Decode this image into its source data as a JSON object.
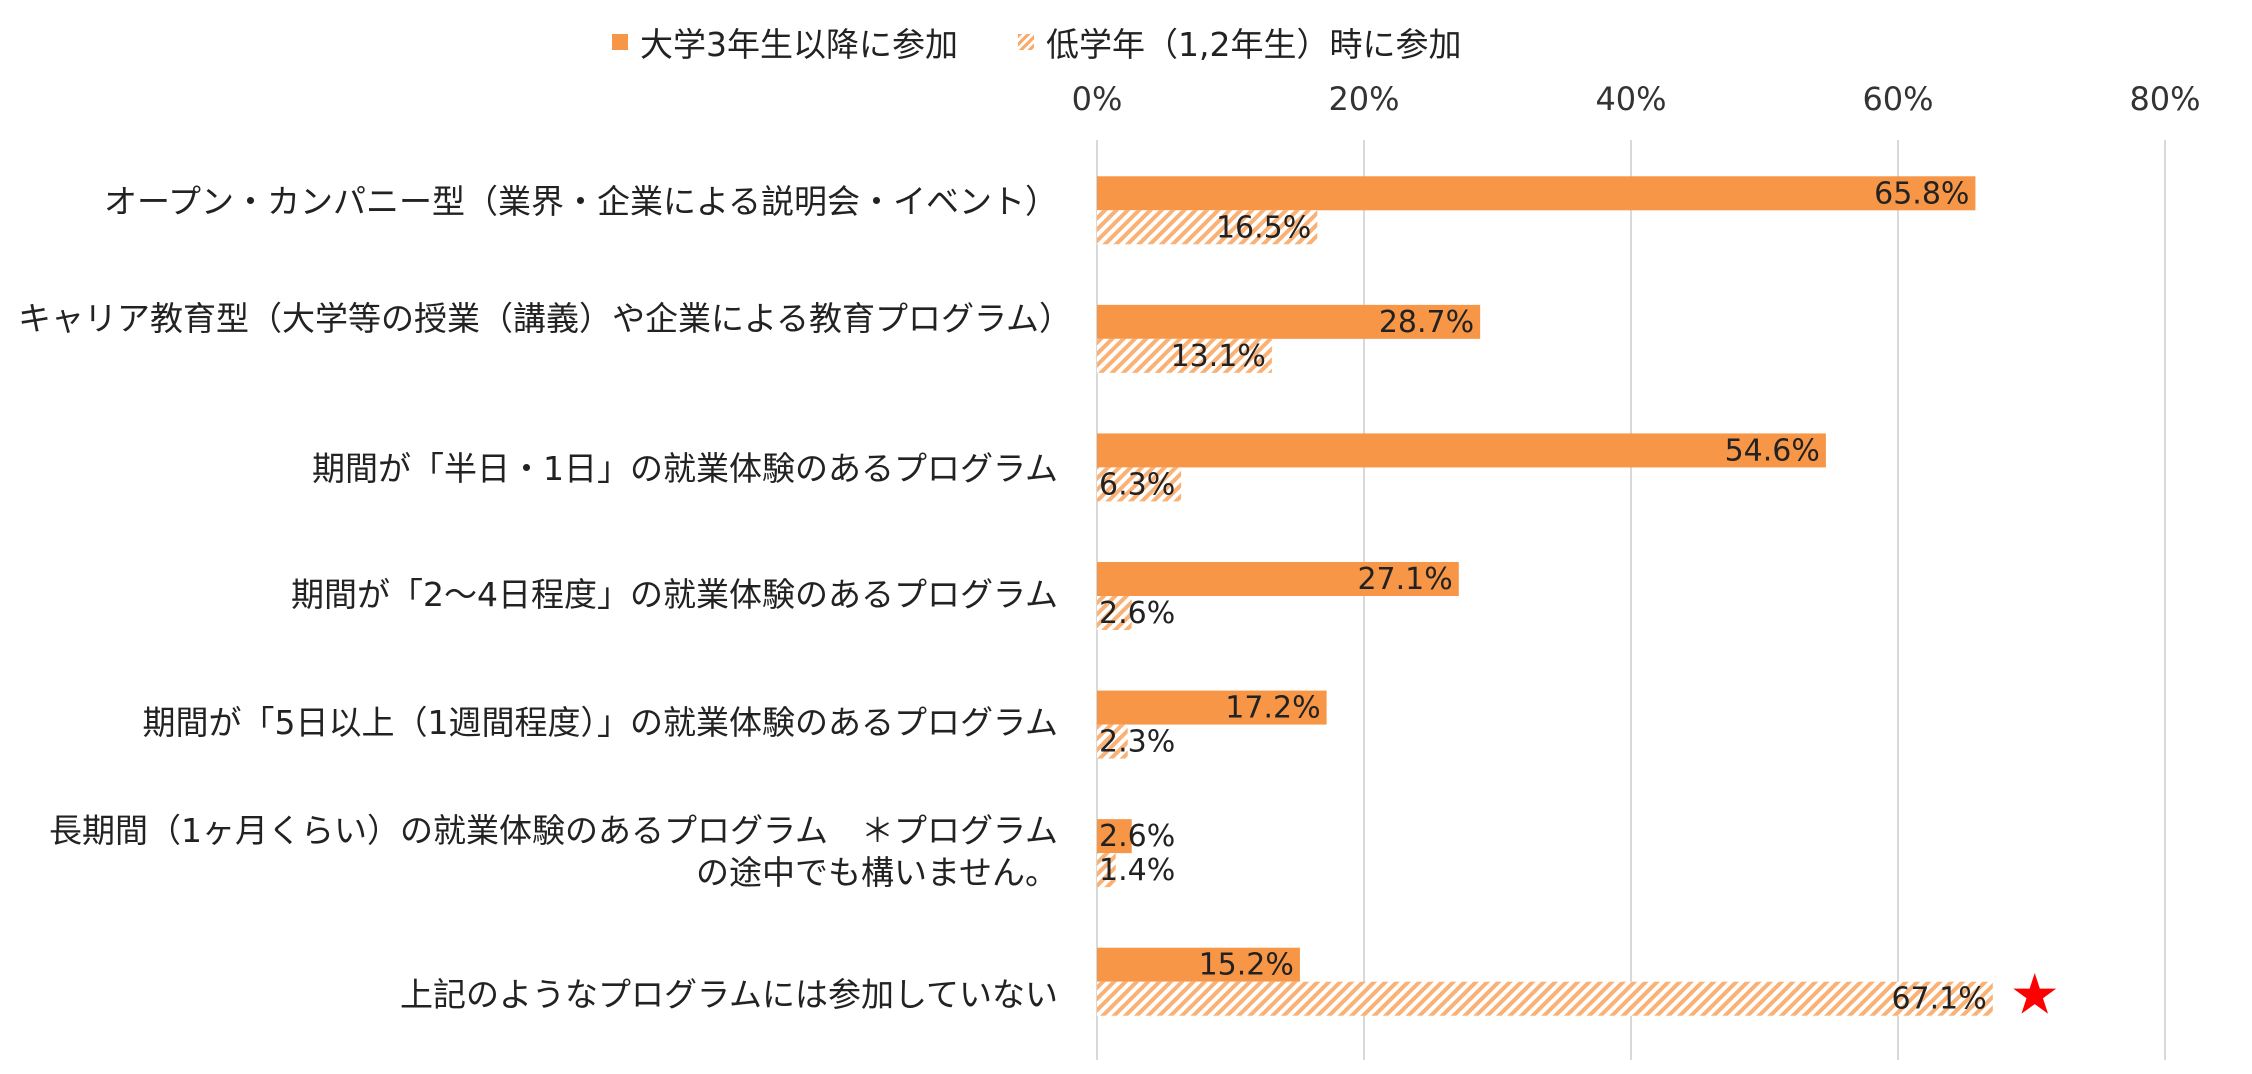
{
  "chart_data": {
    "type": "bar",
    "orientation": "horizontal",
    "categories": [
      "オープン・カンパニー型（業界・企業による説明会・イベント）",
      "キャリア教育型（大学等の授業（講義）や企業による教育プログラム）",
      "期間が「半日・1日」の就業体験のあるプログラム",
      "期間が「2〜4日程度」の就業体験のあるプログラム",
      "期間が「5日以上（1週間程度）」の就業体験のあるプログラム",
      "長期間（1ヶ月くらい）の就業体験のあるプログラム　＊プログラムの途中でも構いません。",
      "上記のようなプログラムには参加していない"
    ],
    "series": [
      {
        "name": "大学3年生以降に参加",
        "values": [
          65.8,
          28.7,
          54.6,
          27.1,
          17.2,
          2.6,
          15.2
        ],
        "style": "solid"
      },
      {
        "name": "低学年（1,2年生）時に参加",
        "values": [
          16.5,
          13.1,
          6.3,
          2.6,
          2.3,
          1.4,
          67.1
        ],
        "style": "hatched"
      }
    ],
    "xlim": [
      0,
      80
    ],
    "xticks": [
      "0%",
      "20%",
      "40%",
      "60%",
      "80%"
    ],
    "value_suffix": "%",
    "legend": "top",
    "grid": true,
    "highlight_marker": "★",
    "highlight_index": 6,
    "colors": {
      "series1": "#F79646",
      "series2": "#F79646",
      "grid": "#D9D9D9",
      "marker": "#FF0000"
    }
  }
}
